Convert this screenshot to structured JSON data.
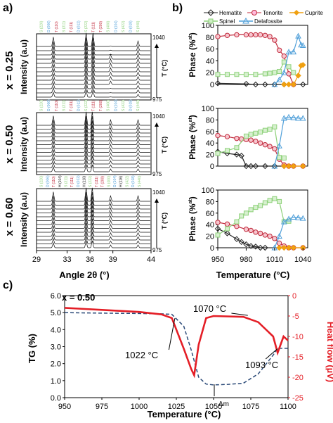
{
  "figure": {
    "panel_labels": {
      "a": "a)",
      "b": "b)",
      "c": "c)"
    },
    "row_labels": [
      "x = 0.25",
      "x = 0.50",
      "x = 0.60"
    ],
    "xrd_ylabel": "Intensity (a.u)",
    "xrd_tlabel": "T (°C)",
    "xrd_t_top": "1040",
    "xrd_t_bottom": "975",
    "xrd_xlabel": "Angle 2θ (°)",
    "xrd_xticks": [
      "29",
      "33",
      "36",
      "39",
      "44"
    ],
    "phase_ylabel": "Phase (%",
    "phase_ylabel_sup": "at",
    "phase_ylabel_end": ")",
    "phase_yticks": [
      "0",
      "20",
      "40",
      "60",
      "80",
      "100"
    ],
    "phase_xticks": [
      "950",
      "980",
      "1010",
      "1040"
    ],
    "phase_xlabel": "Temperature (°C)",
    "legend": [
      "Hematite",
      "Tenorite",
      "Cuprite",
      "Spinel",
      "Delafossite"
    ],
    "hkl_a": [
      "S (220)",
      "D (006)",
      "T (110)",
      "S (311)",
      "T (111)",
      "D (012)",
      "S (222)",
      "T (111)",
      "T (200)",
      "S (400)",
      "D (104)",
      "S (422)",
      "D (018)",
      "S (440)"
    ],
    "hkl_b": [
      "S (220)",
      "D (006)",
      "T (110)",
      "H (104)",
      "S (311)",
      "T (111)",
      "D (012)",
      "H (110)",
      "S (222)",
      "T (111)",
      "T (200)",
      "S (400)",
      "D (104)",
      "H (116)",
      "S (422)",
      "D (018)",
      "S (440)"
    ],
    "tg_annot": "x = 0.50",
    "tg_ylabel": "TG (%)",
    "hf_ylabel": "Heat flow (µV)",
    "tg_yticks": [
      "0.0",
      "1.0",
      "2.0",
      "3.0",
      "4.0",
      "5.0",
      "6.0"
    ],
    "hf_yticks": [
      "0",
      "-5",
      "-10",
      "-15",
      "-20",
      "-25"
    ],
    "tg_xticks": [
      "950",
      "975",
      "1000",
      "1025",
      "1050",
      "1075",
      "1100"
    ],
    "tg_xlabel": "Temperature (°C)",
    "annotations": {
      "a1": "1022 °C",
      "a2": "1070 °C",
      "a3": "1093 °C",
      "dm": "Δm"
    }
  },
  "colors": {
    "hematite": "#222222",
    "tenorite": "#c0283a",
    "cuprite": "#f0a010",
    "spinel": "#8ed17a",
    "delafossite": "#4f9fd9",
    "tg": "#2b4a78",
    "heatflow": "#e41e26",
    "hkl_spinel": "#8ed17a",
    "hkl_delafossite": "#4f9fd9",
    "hkl_tenorite": "#c0283a",
    "hkl_cuprite": "#f0a010",
    "hkl_hematite": "#222222"
  },
  "chart_data": [
    {
      "type": "line",
      "panel": "a, x = 0.25",
      "description_of_axes": "XRD patterns stacked by temperature",
      "xlim": [
        29,
        44
      ],
      "major_peaks_2theta": [
        31.2,
        35.5,
        36.4,
        38.7,
        42.3
      ],
      "temperature_range": [
        975,
        1040
      ]
    },
    {
      "type": "line",
      "panel": "a, x = 0.50",
      "xlim": [
        29,
        44
      ],
      "major_peaks_2theta": [
        31.2,
        35.5,
        36.3,
        38.7,
        42.3
      ],
      "temperature_range": [
        975,
        1040
      ]
    },
    {
      "type": "line",
      "panel": "a, x = 0.60",
      "xlim": [
        29,
        44
      ],
      "major_peaks_2theta": [
        31.2,
        35.5,
        36.3,
        38.7,
        42.3
      ],
      "temperature_range": [
        975,
        1040
      ]
    },
    {
      "type": "line",
      "panel": "b, x = 0.25",
      "xlim": [
        950,
        1045
      ],
      "ylim": [
        0,
        100
      ],
      "series": [
        {
          "name": "Hematite",
          "x": [
            950,
            980,
            990,
            1000,
            1010,
            1020,
            1030,
            1040
          ],
          "values": [
            2,
            1,
            0,
            0,
            0,
            0,
            0,
            0
          ]
        },
        {
          "name": "Tenorite",
          "x": [
            950,
            960,
            970,
            980,
            985,
            990,
            995,
            1000,
            1005,
            1010,
            1015,
            1020,
            1025,
            1030
          ],
          "values": [
            81,
            83,
            84,
            84,
            84,
            84,
            84,
            83,
            81,
            75,
            58,
            48,
            18,
            0
          ]
        },
        {
          "name": "Cuprite",
          "x": [
            1020,
            1025,
            1030,
            1035,
            1038,
            1040
          ],
          "values": [
            0,
            0,
            0,
            15,
            32,
            33
          ]
        },
        {
          "name": "Spinel",
          "x": [
            950,
            960,
            970,
            980,
            990,
            1000,
            1005,
            1010,
            1015,
            1020,
            1025,
            1030
          ],
          "values": [
            17,
            17,
            17,
            17,
            17,
            18,
            19,
            20,
            22,
            38,
            30,
            20
          ]
        },
        {
          "name": "Delafossite",
          "x": [
            1010,
            1015,
            1020,
            1025,
            1030,
            1035,
            1038,
            1040
          ],
          "values": [
            0,
            8,
            20,
            55,
            55,
            82,
            67,
            66
          ]
        }
      ]
    },
    {
      "type": "line",
      "panel": "b, x = 0.50",
      "xlim": [
        950,
        1045
      ],
      "ylim": [
        0,
        100
      ],
      "series": [
        {
          "name": "Hematite",
          "x": [
            950,
            960,
            970,
            975,
            980,
            985,
            990,
            1000,
            1010,
            1020
          ],
          "values": [
            25,
            22,
            20,
            18,
            0,
            0,
            0,
            0,
            0,
            0
          ]
        },
        {
          "name": "Tenorite",
          "x": [
            950,
            960,
            970,
            975,
            980,
            985,
            990,
            995,
            1000,
            1005,
            1010,
            1015,
            1020,
            1025,
            1030,
            1040
          ],
          "values": [
            53,
            51,
            48,
            47,
            46,
            45,
            43,
            40,
            37,
            34,
            30,
            12,
            2,
            0,
            0,
            0
          ]
        },
        {
          "name": "Cuprite",
          "x": [
            1020,
            1025,
            1030,
            1040
          ],
          "values": [
            0,
            0,
            0,
            0
          ]
        },
        {
          "name": "Spinel",
          "x": [
            950,
            960,
            970,
            980,
            985,
            990,
            995,
            1000,
            1005,
            1010,
            1015,
            1020
          ],
          "values": [
            22,
            27,
            32,
            52,
            55,
            57,
            59,
            62,
            64,
            68,
            15,
            14
          ]
        },
        {
          "name": "Delafossite",
          "x": [
            1010,
            1015,
            1020,
            1025,
            1030,
            1035,
            1040
          ],
          "values": [
            0,
            35,
            83,
            85,
            84,
            83,
            83
          ]
        }
      ]
    },
    {
      "type": "line",
      "panel": "b, x = 0.60",
      "xlim": [
        950,
        1045
      ],
      "ylim": [
        0,
        100
      ],
      "series": [
        {
          "name": "Hematite",
          "x": [
            950,
            960,
            970,
            975,
            980,
            985,
            990,
            995,
            1000
          ],
          "values": [
            33,
            25,
            15,
            10,
            6,
            3,
            2,
            0,
            0
          ]
        },
        {
          "name": "Tenorite",
          "x": [
            950,
            960,
            970,
            980,
            985,
            990,
            995,
            1000,
            1005,
            1010,
            1015,
            1020,
            1025,
            1030,
            1040
          ],
          "values": [
            44,
            41,
            37,
            32,
            30,
            27,
            25,
            22,
            20,
            16,
            8,
            3,
            0,
            0,
            0
          ]
        },
        {
          "name": "Cuprite",
          "x": [
            1015,
            1020,
            1025,
            1030,
            1040
          ],
          "values": [
            0,
            0,
            0,
            0,
            0
          ]
        },
        {
          "name": "Spinel",
          "x": [
            950,
            960,
            970,
            975,
            980,
            985,
            990,
            995,
            1000,
            1005,
            1010,
            1015,
            1020,
            1025
          ],
          "values": [
            22,
            33,
            45,
            55,
            60,
            66,
            70,
            73,
            78,
            82,
            85,
            80,
            45,
            46
          ]
        },
        {
          "name": "Delafossite",
          "x": [
            1010,
            1015,
            1020,
            1025,
            1030,
            1035,
            1040
          ],
          "values": [
            0,
            20,
            45,
            50,
            53,
            52,
            51
          ]
        }
      ]
    },
    {
      "type": "line",
      "panel": "c",
      "xlim": [
        950,
        1100
      ],
      "left_axis": {
        "label": "TG (%)",
        "ylim": [
          0,
          6
        ]
      },
      "right_axis": {
        "label": "Heat flow (µV)",
        "ylim": [
          -25,
          0
        ]
      },
      "series": [
        {
          "name": "TG",
          "axis": "left",
          "x": [
            950,
            975,
            1000,
            1015,
            1022,
            1030,
            1035,
            1040,
            1045,
            1050,
            1060,
            1070,
            1080,
            1090,
            1093,
            1100
          ],
          "values": [
            5.0,
            4.97,
            4.95,
            4.93,
            4.9,
            4.2,
            2.8,
            1.2,
            0.8,
            0.75,
            0.78,
            0.85,
            1.4,
            2.5,
            2.9,
            2.9
          ]
        },
        {
          "name": "Heat flow",
          "axis": "right",
          "x": [
            950,
            975,
            1000,
            1015,
            1022,
            1030,
            1035,
            1037,
            1040,
            1045,
            1050,
            1070,
            1080,
            1090,
            1093,
            1097,
            1100
          ],
          "values": [
            -3,
            -3.5,
            -4,
            -4.6,
            -5.5,
            -13,
            -18,
            -19.5,
            -12,
            -5.5,
            -5,
            -5.2,
            -6.5,
            -10,
            -14,
            -10,
            -11
          ]
        }
      ]
    }
  ]
}
